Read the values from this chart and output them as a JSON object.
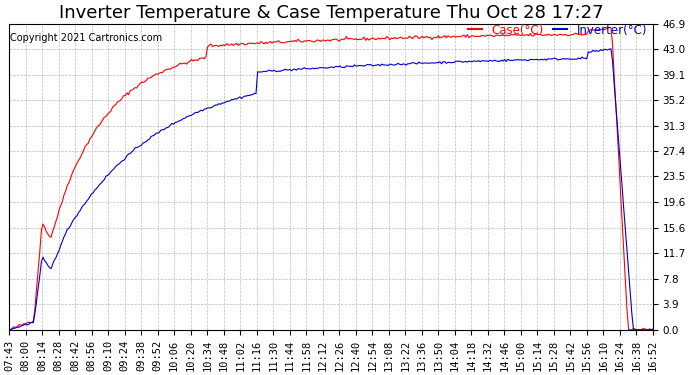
{
  "title": "Inverter Temperature & Case Temperature Thu Oct 28 17:27",
  "copyright": "Copyright 2021 Cartronics.com",
  "legend_case": "Case(°C)",
  "legend_inverter": "Inverter(°C)",
  "color_case": "#ff0000",
  "color_inverter": "#0000cc",
  "background_color": "#ffffff",
  "grid_color": "#aaaaaa",
  "ylim": [
    0.0,
    46.9
  ],
  "yticks": [
    0.0,
    3.9,
    7.8,
    11.7,
    15.6,
    19.6,
    23.5,
    27.4,
    31.3,
    35.2,
    39.1,
    43.0,
    46.9
  ],
  "xtick_labels": [
    "07:43",
    "08:00",
    "08:14",
    "08:28",
    "08:42",
    "08:56",
    "09:10",
    "09:24",
    "09:38",
    "09:52",
    "10:06",
    "10:20",
    "10:34",
    "10:48",
    "11:02",
    "11:16",
    "11:30",
    "11:44",
    "11:58",
    "12:12",
    "12:26",
    "12:40",
    "12:54",
    "13:08",
    "13:22",
    "13:36",
    "13:50",
    "14:04",
    "14:18",
    "14:32",
    "14:46",
    "15:00",
    "15:14",
    "15:28",
    "15:42",
    "15:56",
    "16:10",
    "16:24",
    "16:38",
    "16:52"
  ],
  "title_fontsize": 13,
  "axis_fontsize": 7.5,
  "copyright_fontsize": 7
}
